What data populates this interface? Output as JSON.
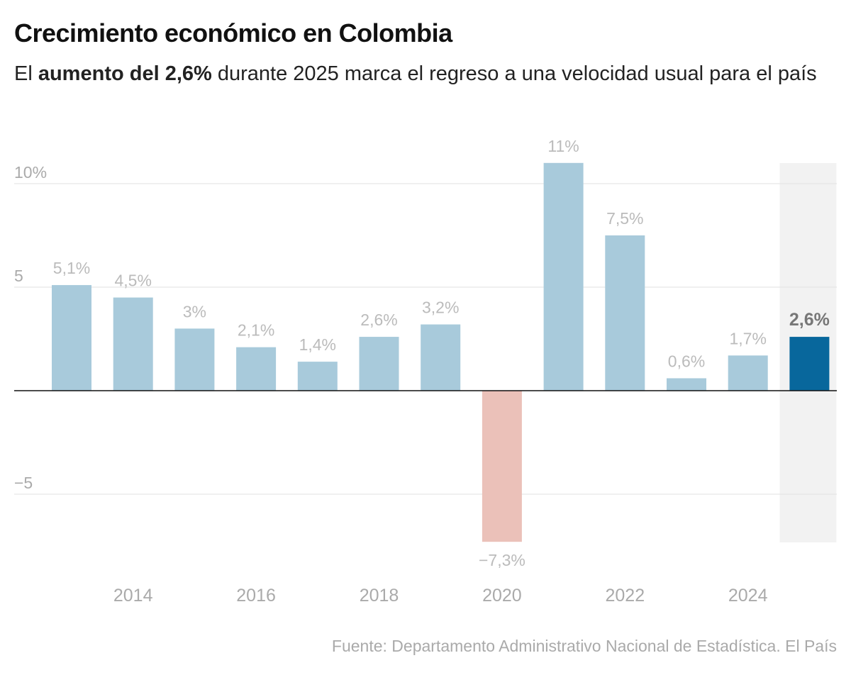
{
  "title": "Crecimiento económico en Colombia",
  "subtitle": {
    "pre": "El ",
    "bold": "aumento del 2,6%",
    "post": " durante 2025 marca el regreso a una velocidad usual para el país"
  },
  "source": "Fuente: Departamento Administrativo Nacional de Estadística. El País",
  "chart_data": {
    "type": "bar",
    "categories": [
      2013,
      2014,
      2015,
      2016,
      2017,
      2018,
      2019,
      2020,
      2021,
      2022,
      2023,
      2024,
      2025
    ],
    "values": [
      5.1,
      4.5,
      3.0,
      2.1,
      1.4,
      2.6,
      3.2,
      -7.3,
      11.0,
      7.5,
      0.6,
      1.7,
      2.6
    ],
    "data_labels": [
      "5,1%",
      "4,5%",
      "3%",
      "2,1%",
      "1,4%",
      "2,6%",
      "3,2%",
      "−7,3%",
      "11%",
      "7,5%",
      "0,6%",
      "1,7%",
      "2,6%"
    ],
    "highlight_category": 2025,
    "x_tick_labels": [
      "2014",
      "2016",
      "2018",
      "2020",
      "2022",
      "2024"
    ],
    "y_ticks": [
      {
        "value": 10,
        "label": "10%"
      },
      {
        "value": 5,
        "label": "5"
      },
      {
        "value": -5,
        "label": "−5"
      }
    ],
    "ylim": [
      -7.3,
      11
    ],
    "grid": true,
    "colors": {
      "positive": "#a8cadb",
      "negative": "#ebc1b9",
      "highlight": "#08679c",
      "highlight_bg": "#f2f2f2",
      "label": "#bbbbbb",
      "highlight_label": "#777777"
    }
  }
}
